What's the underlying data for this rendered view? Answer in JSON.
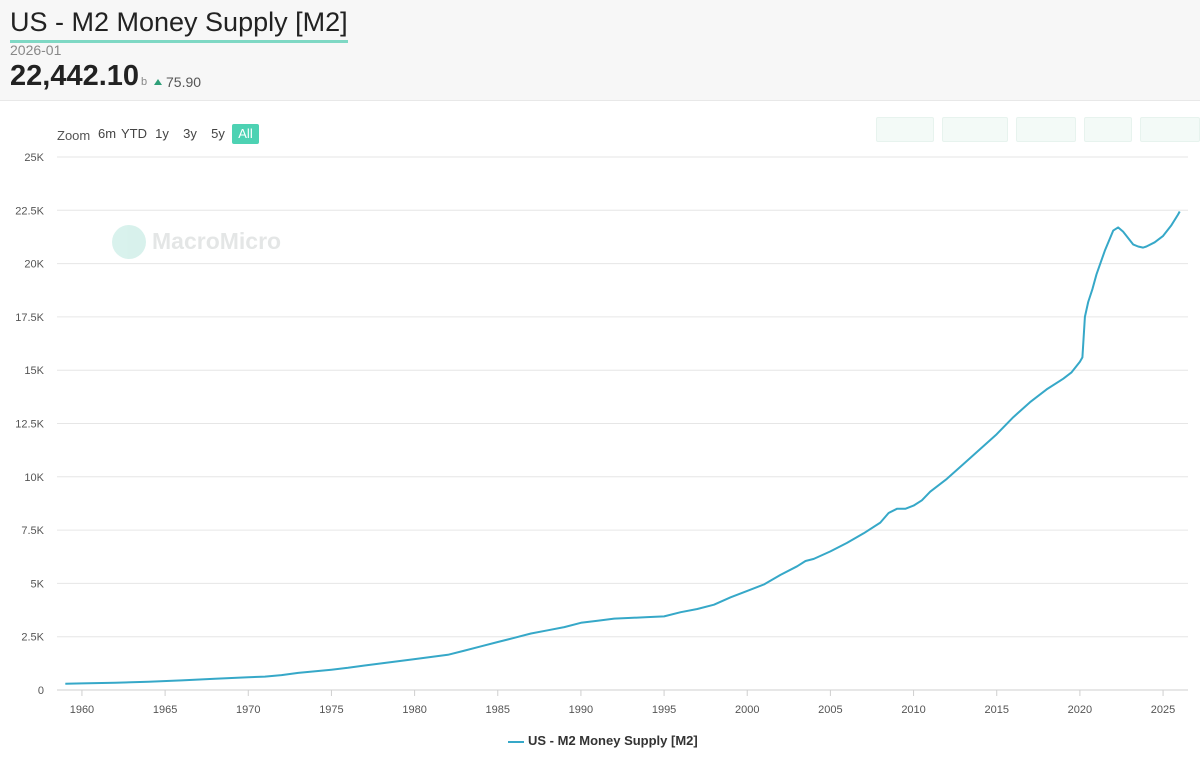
{
  "header": {
    "title": "US - M2 Money Supply [M2]",
    "date": "2026-01",
    "value": "22,442.10",
    "unit": "b",
    "change": "75.90"
  },
  "toolbar": {
    "zoom_label": "Zoom",
    "zoom_options": [
      "6m",
      "YTD",
      "1y",
      "3y",
      "5y",
      "All"
    ],
    "active_zoom": "All",
    "accent_color": "#4dd2b3"
  },
  "watermark": {
    "text": "MacroMicro",
    "icon": "macromicro-logo-icon"
  },
  "chart_data": {
    "type": "line",
    "title": "US - M2 Money Supply [M2]",
    "xlabel": "",
    "ylabel": "",
    "xlim": [
      1958.5,
      2026.5
    ],
    "ylim": [
      0,
      25000
    ],
    "x_ticks": [
      "1960",
      "1965",
      "1970",
      "1975",
      "1980",
      "1985",
      "1990",
      "1995",
      "2000",
      "2005",
      "2010",
      "2015",
      "2020",
      "2025"
    ],
    "y_ticks": [
      "0",
      "2.5K",
      "5K",
      "7.5K",
      "10K",
      "12.5K",
      "15K",
      "17.5K",
      "20K",
      "22.5K",
      "25K"
    ],
    "grid": true,
    "legend_position": "bottom-center",
    "series": [
      {
        "name": "US - M2 Money Supply [M2]",
        "color": "#36a8c8",
        "x": [
          1959,
          1960,
          1962,
          1964,
          1966,
          1968,
          1970,
          1971,
          1972,
          1973,
          1975,
          1976,
          1977,
          1978,
          1980,
          1982,
          1983,
          1984,
          1985,
          1986,
          1987,
          1988,
          1989,
          1990,
          1991,
          1992,
          1993,
          1994,
          1995,
          1996,
          1997,
          1998,
          1999,
          2000,
          2001,
          2002,
          2003,
          2003.5,
          2004,
          2005,
          2006,
          2007,
          2008,
          2008.5,
          2009,
          2009.5,
          2010,
          2010.5,
          2011,
          2011.5,
          2012,
          2013,
          2014,
          2015,
          2016,
          2017,
          2018,
          2019,
          2019.5,
          2020,
          2020.15,
          2020.3,
          2020.5,
          2020.75,
          2021,
          2021.5,
          2022,
          2022.3,
          2022.6,
          2022.9,
          2023.2,
          2023.5,
          2023.8,
          2024,
          2024.5,
          2025,
          2025.5,
          2025.9,
          2026
        ],
        "values": [
          290,
          310,
          340,
          390,
          450,
          530,
          600,
          630,
          700,
          800,
          950,
          1040,
          1150,
          1250,
          1450,
          1650,
          1850,
          2050,
          2250,
          2450,
          2650,
          2800,
          2950,
          3150,
          3250,
          3350,
          3380,
          3420,
          3450,
          3650,
          3800,
          4000,
          4350,
          4650,
          4950,
          5400,
          5800,
          6050,
          6150,
          6500,
          6900,
          7350,
          7850,
          8300,
          8500,
          8500,
          8650,
          8900,
          9300,
          9600,
          9900,
          10600,
          11300,
          12000,
          12800,
          13500,
          14100,
          14600,
          14900,
          15400,
          15600,
          17500,
          18200,
          18800,
          19500,
          20600,
          21550,
          21700,
          21500,
          21200,
          20900,
          20800,
          20750,
          20800,
          21000,
          21300,
          21800,
          22300,
          22442.1
        ]
      }
    ]
  }
}
